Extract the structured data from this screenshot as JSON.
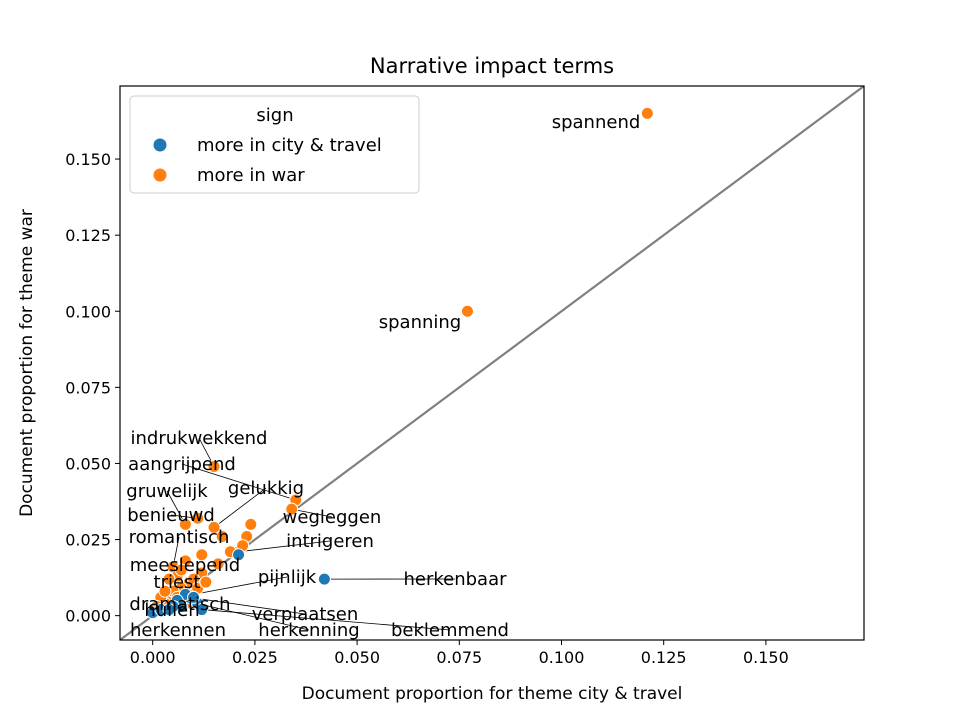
{
  "chart_data": {
    "type": "scatter",
    "title": "Narrative impact terms",
    "xlabel": "Document proportion for theme city & travel",
    "ylabel": "Document proportion for theme war",
    "xlim": [
      -0.008,
      0.174
    ],
    "ylim": [
      -0.008,
      0.174
    ],
    "xticks": [
      "0.000",
      "0.025",
      "0.050",
      "0.075",
      "0.100",
      "0.125",
      "0.150"
    ],
    "yticks": [
      "0.000",
      "0.025",
      "0.050",
      "0.075",
      "0.100",
      "0.125",
      "0.150"
    ],
    "diagonal": "y = x",
    "legend": {
      "title": "sign",
      "position": "upper-left",
      "entries": [
        {
          "label": "more in city & travel",
          "color": "#1f77b4"
        },
        {
          "label": "more in war",
          "color": "#ff7f0e"
        }
      ]
    },
    "points": [
      {
        "x": 0.121,
        "y": 0.165,
        "sign": "war",
        "label": "spannend"
      },
      {
        "x": 0.077,
        "y": 0.1,
        "sign": "war",
        "label": "spanning"
      },
      {
        "x": 0.015,
        "y": 0.049,
        "sign": "war",
        "label": "indrukwekkend"
      },
      {
        "x": 0.035,
        "y": 0.038,
        "sign": "war",
        "label": "aangrijpend"
      },
      {
        "x": 0.015,
        "y": 0.029,
        "sign": "war",
        "label": "gelukkig"
      },
      {
        "x": 0.034,
        "y": 0.035,
        "sign": "war",
        "label": "wegleggen"
      },
      {
        "x": 0.008,
        "y": 0.03,
        "sign": "war",
        "label": "gruwelijk"
      },
      {
        "x": 0.011,
        "y": 0.032,
        "sign": "war",
        "label": "benieuwd"
      },
      {
        "x": 0.021,
        "y": 0.021,
        "sign": "war",
        "label": "intrigeren"
      },
      {
        "x": 0.005,
        "y": 0.016,
        "sign": "war",
        "label": "romantisch"
      },
      {
        "x": 0.006,
        "y": 0.013,
        "sign": "war",
        "label": "meeslepend"
      },
      {
        "x": 0.009,
        "y": 0.011,
        "sign": "war",
        "label": "triest"
      },
      {
        "x": 0.01,
        "y": 0.007,
        "sign": "war",
        "label": "pijnlijk"
      },
      {
        "x": 0.042,
        "y": 0.012,
        "sign": "city & travel",
        "label": "herkenbaar"
      },
      {
        "x": 0.004,
        "y": 0.005,
        "sign": "war",
        "label": "dramatisch"
      },
      {
        "x": 0.003,
        "y": 0.004,
        "sign": "war",
        "label": "huilen"
      },
      {
        "x": 0.009,
        "y": 0.006,
        "sign": "city & travel",
        "label": "verplaatsen"
      },
      {
        "x": 0.0,
        "y": 0.001,
        "sign": "city & travel",
        "label": "herkennen"
      },
      {
        "x": 0.011,
        "y": 0.004,
        "sign": "city & travel",
        "label": "herkenning"
      },
      {
        "x": 0.012,
        "y": 0.002,
        "sign": "city & travel",
        "label": "beklemmend"
      },
      {
        "x": 0.024,
        "y": 0.03,
        "sign": "war"
      },
      {
        "x": 0.023,
        "y": 0.026,
        "sign": "war"
      },
      {
        "x": 0.022,
        "y": 0.023,
        "sign": "war"
      },
      {
        "x": 0.019,
        "y": 0.021,
        "sign": "war"
      },
      {
        "x": 0.017,
        "y": 0.026,
        "sign": "war"
      },
      {
        "x": 0.012,
        "y": 0.02,
        "sign": "war"
      },
      {
        "x": 0.016,
        "y": 0.017,
        "sign": "war"
      },
      {
        "x": 0.008,
        "y": 0.018,
        "sign": "war"
      },
      {
        "x": 0.007,
        "y": 0.015,
        "sign": "war"
      },
      {
        "x": 0.004,
        "y": 0.012,
        "sign": "war"
      },
      {
        "x": 0.012,
        "y": 0.014,
        "sign": "war"
      },
      {
        "x": 0.01,
        "y": 0.012,
        "sign": "war"
      },
      {
        "x": 0.007,
        "y": 0.009,
        "sign": "war"
      },
      {
        "x": 0.005,
        "y": 0.008,
        "sign": "war"
      },
      {
        "x": 0.011,
        "y": 0.009,
        "sign": "war"
      },
      {
        "x": 0.013,
        "y": 0.011,
        "sign": "war"
      },
      {
        "x": 0.006,
        "y": 0.006,
        "sign": "war"
      },
      {
        "x": 0.002,
        "y": 0.006,
        "sign": "war"
      },
      {
        "x": 0.001,
        "y": 0.003,
        "sign": "war"
      },
      {
        "x": 0.008,
        "y": 0.004,
        "sign": "war"
      },
      {
        "x": 0.003,
        "y": 0.008,
        "sign": "war"
      },
      {
        "x": 0.008,
        "y": 0.007,
        "sign": "city & travel"
      },
      {
        "x": 0.006,
        "y": 0.005,
        "sign": "city & travel"
      },
      {
        "x": 0.007,
        "y": 0.003,
        "sign": "city & travel"
      },
      {
        "x": 0.005,
        "y": 0.003,
        "sign": "city & travel"
      },
      {
        "x": 0.01,
        "y": 0.006,
        "sign": "city & travel"
      },
      {
        "x": 0.002,
        "y": 0.002,
        "sign": "city & travel"
      },
      {
        "x": 0.004,
        "y": 0.002,
        "sign": "city & travel"
      },
      {
        "x": 0.021,
        "y": 0.02,
        "sign": "city & travel"
      }
    ]
  }
}
